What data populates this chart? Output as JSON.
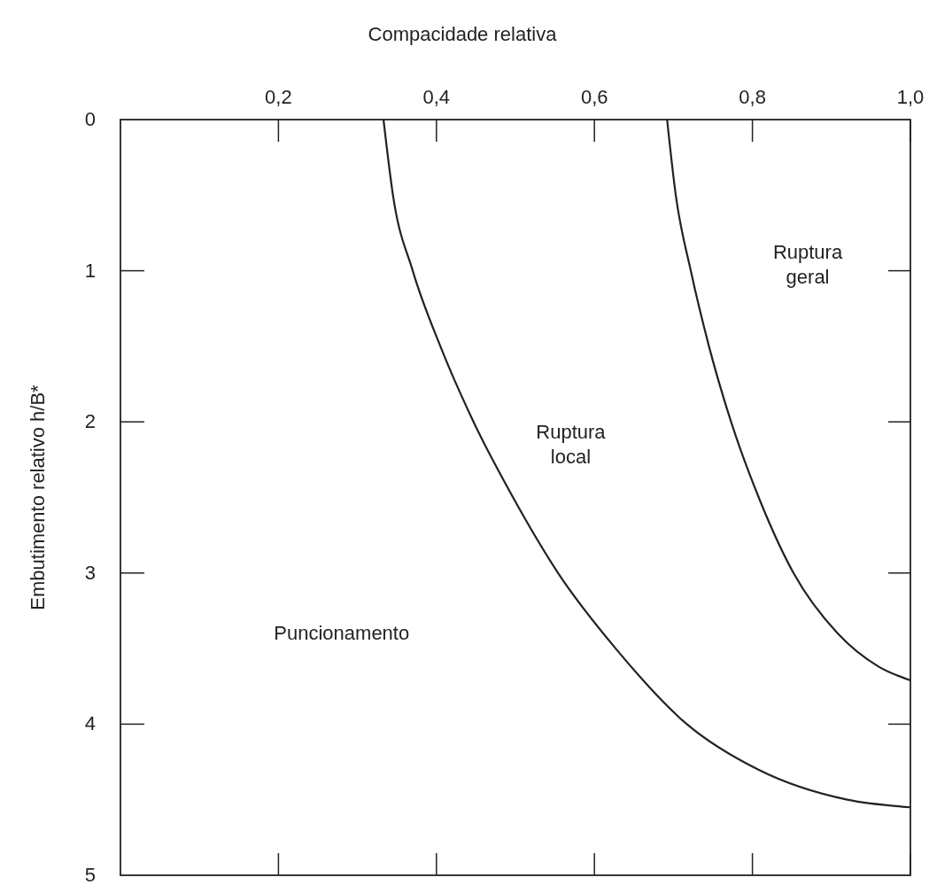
{
  "chart_data": {
    "type": "line",
    "xlabel": "Compacidade relativa",
    "ylabel": "Embutimento relativo h/B*",
    "xlim": [
      0,
      1
    ],
    "xticks": [
      {
        "value": 0.2,
        "label": "0,2"
      },
      {
        "value": 0.4,
        "label": "0,4"
      },
      {
        "value": 0.6,
        "label": "0,6"
      },
      {
        "value": 0.8,
        "label": "0,8"
      },
      {
        "value": 1,
        "label": "1,0"
      }
    ],
    "ylim": [
      5,
      0
    ],
    "yticks": [
      0,
      1,
      2,
      3,
      4,
      5
    ],
    "grid": false,
    "line_style": "solid",
    "series": [
      {
        "color": "#222222",
        "x": [
          0.333,
          0.345,
          0.37,
          0.405,
          0.447,
          0.497,
          0.554,
          0.627,
          0.717,
          0.807,
          0.92,
          1.0
        ],
        "values": [
          0,
          0.5,
          1,
          1.5,
          2,
          2.5,
          3,
          3.5,
          4,
          4.3,
          4.5,
          4.55
        ]
      },
      {
        "color": "#222222",
        "x": [
          0.692,
          0.703,
          0.722,
          0.745,
          0.773,
          0.808,
          0.852,
          0.908,
          0.96,
          1.0
        ],
        "values": [
          0,
          0.5,
          1,
          1.5,
          2,
          2.5,
          3,
          3.4,
          3.62,
          3.71
        ]
      }
    ],
    "annotations": [
      "Ruptura\ngeral",
      "Ruptura\nlocal",
      "Puncionamento"
    ]
  }
}
